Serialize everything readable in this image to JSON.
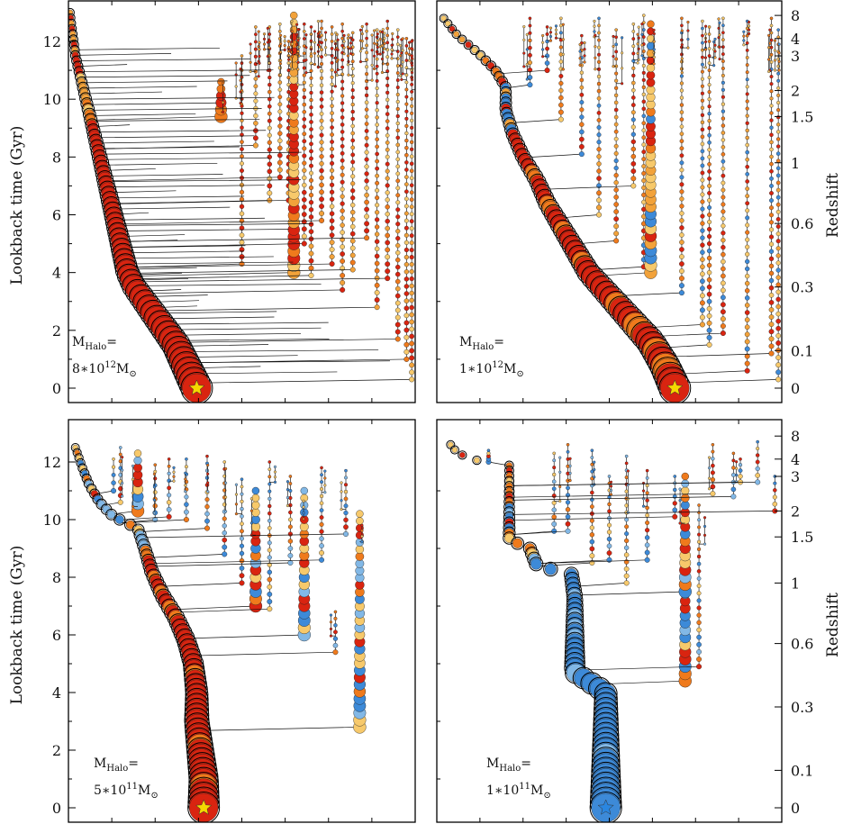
{
  "figure": {
    "left_axis_label": "Lookback time (Gyr)",
    "right_axis_label": "Redshift",
    "y_tick_labels": [
      "0",
      "2",
      "4",
      "6",
      "8",
      "10",
      "12"
    ],
    "z_tick_labels": [
      "0",
      "0.1",
      "0.3",
      "0.6",
      "1",
      "1.5",
      "2",
      "3",
      "4",
      "8"
    ]
  },
  "colors": {
    "red": "#d92410",
    "orange": "#ef7a1c",
    "amber": "#f2a23a",
    "yellow": "#f7c96b",
    "blue": "#3d8ad8",
    "lightblue": "#82b8e6",
    "star_yellow": "#f5d800",
    "star_blue": "#2a86e0"
  },
  "panels": [
    {
      "mass_label": {
        "prefix": "M",
        "sub": "Halo",
        "eq": "=",
        "coef": "8∗10",
        "exp": "12",
        "unit": "M",
        "unit_sub": "⊙"
      },
      "has_left_axis": true,
      "has_right_axis": false,
      "density": "high",
      "palette": [
        "red",
        "red",
        "orange",
        "amber",
        "yellow"
      ],
      "final_marker": {
        "time_gyr": 0,
        "color": "star_yellow"
      }
    },
    {
      "mass_label": {
        "prefix": "M",
        "sub": "Halo",
        "eq": "=",
        "coef": "1∗10",
        "exp": "12",
        "unit": "M",
        "unit_sub": "⊙"
      },
      "has_left_axis": false,
      "has_right_axis": true,
      "density": "medium",
      "palette": [
        "red",
        "orange",
        "amber",
        "yellow",
        "blue"
      ],
      "final_marker": {
        "time_gyr": 0,
        "color": "star_yellow"
      }
    },
    {
      "mass_label": {
        "prefix": "M",
        "sub": "Halo",
        "eq": "=",
        "coef": "5∗10",
        "exp": "11",
        "unit": "M",
        "unit_sub": "⊙"
      },
      "has_left_axis": true,
      "has_right_axis": false,
      "density": "low",
      "palette": [
        "red",
        "orange",
        "yellow",
        "lightblue",
        "blue"
      ],
      "final_marker": {
        "time_gyr": 0,
        "color": "star_yellow"
      }
    },
    {
      "mass_label": {
        "prefix": "M",
        "sub": "Halo",
        "eq": "=",
        "coef": "1∗10",
        "exp": "11",
        "unit": "M",
        "unit_sub": "⊙"
      },
      "has_left_axis": false,
      "has_right_axis": true,
      "density": "sparse",
      "palette": [
        "blue",
        "lightblue",
        "orange",
        "red",
        "yellow"
      ],
      "final_marker": {
        "time_gyr": 0,
        "color": "star_blue"
      }
    }
  ],
  "chart_data": [
    {
      "type": "merger-tree",
      "xlabel": "",
      "ylabel": "Lookback time (Gyr)",
      "y2label": "Redshift",
      "ylim": [
        0,
        13
      ],
      "y_ticks": [
        0,
        2,
        4,
        6,
        8,
        10,
        12
      ],
      "y2_ticks": [
        0,
        0.1,
        0.3,
        0.6,
        1,
        1.5,
        2,
        3,
        4,
        8
      ],
      "main_branch": [
        [
          0.37,
          0
        ],
        [
          0.35,
          0.5
        ],
        [
          0.33,
          1
        ],
        [
          0.31,
          1.5
        ],
        [
          0.28,
          2
        ],
        [
          0.25,
          2.5
        ],
        [
          0.22,
          3
        ],
        [
          0.19,
          3.5
        ],
        [
          0.17,
          4
        ],
        [
          0.16,
          4.5
        ],
        [
          0.15,
          5
        ],
        [
          0.14,
          5.5
        ],
        [
          0.13,
          6
        ],
        [
          0.12,
          6.5
        ],
        [
          0.11,
          7
        ],
        [
          0.1,
          7.5
        ],
        [
          0.09,
          8
        ],
        [
          0.08,
          8.5
        ],
        [
          0.07,
          9
        ],
        [
          0.06,
          9.5
        ],
        [
          0.05,
          10
        ],
        [
          0.04,
          10.5
        ],
        [
          0.03,
          11
        ],
        [
          0.02,
          11.5
        ],
        [
          0.015,
          12
        ],
        [
          0.01,
          12.5
        ],
        [
          0.005,
          13
        ]
      ],
      "main_branch_size": "large",
      "side_branches": [
        {
          "x": 0.44,
          "t_top": 10.6,
          "t_merge": 9.4,
          "bold": true
        },
        {
          "x": 0.5,
          "t_top": 11.5,
          "t_merge": 4.3,
          "bold": false
        },
        {
          "x": 0.54,
          "t_top": 12.5,
          "t_merge": 8.4,
          "bold": false
        },
        {
          "x": 0.58,
          "t_top": 12.5,
          "t_merge": 6.5,
          "bold": false
        },
        {
          "x": 0.61,
          "t_top": 12.6,
          "t_merge": 7.3,
          "bold": false
        },
        {
          "x": 0.635,
          "t_top": 12.0,
          "t_merge": 6.5,
          "bold": false
        },
        {
          "x": 0.65,
          "t_top": 12.9,
          "t_merge": 4.0,
          "bold": true
        },
        {
          "x": 0.68,
          "t_top": 12.6,
          "t_merge": 5.0,
          "bold": false
        },
        {
          "x": 0.7,
          "t_top": 12.5,
          "t_merge": 3.9,
          "bold": false
        },
        {
          "x": 0.73,
          "t_top": 12.7,
          "t_merge": 5.8,
          "bold": false
        },
        {
          "x": 0.76,
          "t_top": 12.5,
          "t_merge": 4.3,
          "bold": false
        },
        {
          "x": 0.79,
          "t_top": 12.6,
          "t_merge": 3.4,
          "bold": false
        },
        {
          "x": 0.82,
          "t_top": 12.3,
          "t_merge": 4.1,
          "bold": false
        },
        {
          "x": 0.86,
          "t_top": 12.6,
          "t_merge": 5.2,
          "bold": false
        },
        {
          "x": 0.89,
          "t_top": 12.4,
          "t_merge": 2.8,
          "bold": false
        },
        {
          "x": 0.92,
          "t_top": 12.7,
          "t_merge": 3.8,
          "bold": false
        },
        {
          "x": 0.95,
          "t_top": 12.4,
          "t_merge": 1.7,
          "bold": false
        },
        {
          "x": 0.975,
          "t_top": 12.1,
          "t_merge": 1.0,
          "bold": false
        },
        {
          "x": 0.99,
          "t_top": 12.0,
          "t_merge": 0.3,
          "bold": false
        }
      ]
    },
    {
      "type": "merger-tree",
      "xlabel": "",
      "ylabel": "Lookback time (Gyr)",
      "y2label": "Redshift",
      "ylim": [
        0,
        13
      ],
      "y_ticks": [
        0,
        2,
        4,
        6,
        8,
        10,
        12
      ],
      "y2_ticks": [
        0,
        0.1,
        0.3,
        0.6,
        1,
        1.5,
        2,
        3,
        4,
        8
      ],
      "main_branch": [
        [
          0.69,
          0
        ],
        [
          0.66,
          0.8
        ],
        [
          0.62,
          1.6
        ],
        [
          0.56,
          2.4
        ],
        [
          0.5,
          3.2
        ],
        [
          0.44,
          4
        ],
        [
          0.4,
          4.8
        ],
        [
          0.36,
          5.6
        ],
        [
          0.32,
          6.4
        ],
        [
          0.29,
          7.2
        ],
        [
          0.25,
          8
        ],
        [
          0.22,
          8.8
        ],
        [
          0.2,
          9.6
        ],
        [
          0.2,
          10.4
        ],
        [
          0.17,
          11
        ],
        [
          0.12,
          11.6
        ],
        [
          0.06,
          12.2
        ],
        [
          0.02,
          12.8
        ]
      ],
      "main_branch_size": "large",
      "side_branches": [
        {
          "x": 0.27,
          "t_top": 12.8,
          "t_merge": 10.5,
          "bold": false
        },
        {
          "x": 0.32,
          "t_top": 12.5,
          "t_merge": 11.0,
          "bold": false
        },
        {
          "x": 0.36,
          "t_top": 12.8,
          "t_merge": 9.3,
          "bold": false
        },
        {
          "x": 0.42,
          "t_top": 12.2,
          "t_merge": 8.1,
          "bold": false
        },
        {
          "x": 0.47,
          "t_top": 12.8,
          "t_merge": 6.0,
          "bold": false
        },
        {
          "x": 0.52,
          "t_top": 12.4,
          "t_merge": 5.1,
          "bold": false
        },
        {
          "x": 0.57,
          "t_top": 12.6,
          "t_merge": 7.0,
          "bold": false
        },
        {
          "x": 0.6,
          "t_top": 12.9,
          "t_merge": 4.2,
          "bold": false
        },
        {
          "x": 0.62,
          "t_top": 12.6,
          "t_merge": 4.0,
          "bold": true
        },
        {
          "x": 0.71,
          "t_top": 12.8,
          "t_merge": 3.3,
          "bold": false
        },
        {
          "x": 0.77,
          "t_top": 12.7,
          "t_merge": 2.2,
          "bold": false
        },
        {
          "x": 0.79,
          "t_top": 12.5,
          "t_merge": 1.5,
          "bold": false
        },
        {
          "x": 0.83,
          "t_top": 12.8,
          "t_merge": 1.9,
          "bold": false
        },
        {
          "x": 0.9,
          "t_top": 12.7,
          "t_merge": 0.6,
          "bold": false
        },
        {
          "x": 0.97,
          "t_top": 12.8,
          "t_merge": 1.2,
          "bold": false
        },
        {
          "x": 0.99,
          "t_top": 12.4,
          "t_merge": 0.3,
          "bold": false
        }
      ]
    },
    {
      "type": "merger-tree",
      "xlabel": "",
      "ylabel": "Lookback time (Gyr)",
      "y2label": "Redshift",
      "ylim": [
        0,
        13
      ],
      "y_ticks": [
        0,
        2,
        4,
        6,
        8,
        10,
        12
      ],
      "y2_ticks": [
        0,
        0.1,
        0.3,
        0.6,
        1,
        1.5,
        2,
        3,
        4,
        8
      ],
      "main_branch": [
        [
          0.39,
          0
        ],
        [
          0.39,
          1
        ],
        [
          0.38,
          2
        ],
        [
          0.37,
          3
        ],
        [
          0.37,
          4
        ],
        [
          0.36,
          5
        ],
        [
          0.34,
          5.8
        ],
        [
          0.31,
          6.6
        ],
        [
          0.27,
          7.4
        ],
        [
          0.24,
          8.2
        ],
        [
          0.22,
          9
        ],
        [
          0.2,
          9.7
        ],
        [
          0.13,
          10.1
        ],
        [
          0.09,
          10.6
        ],
        [
          0.06,
          11.2
        ],
        [
          0.04,
          11.8
        ],
        [
          0.02,
          12.5
        ]
      ],
      "main_branch_size": "large",
      "side_branches": [
        {
          "x": 0.13,
          "t_top": 12.1,
          "t_merge": 11.0,
          "bold": false
        },
        {
          "x": 0.15,
          "t_top": 12.5,
          "t_merge": 10.6,
          "bold": false
        },
        {
          "x": 0.2,
          "t_top": 12.3,
          "t_merge": 10.3,
          "bold": true
        },
        {
          "x": 0.25,
          "t_top": 11.9,
          "t_merge": 10.0,
          "bold": false
        },
        {
          "x": 0.29,
          "t_top": 12.1,
          "t_merge": 10.1,
          "bold": false
        },
        {
          "x": 0.34,
          "t_top": 12.1,
          "t_merge": 10.0,
          "bold": false
        },
        {
          "x": 0.4,
          "t_top": 12.2,
          "t_merge": 9.7,
          "bold": false
        },
        {
          "x": 0.45,
          "t_top": 12.0,
          "t_merge": 8.8,
          "bold": false
        },
        {
          "x": 0.5,
          "t_top": 11.4,
          "t_merge": 7.8,
          "bold": false
        },
        {
          "x": 0.54,
          "t_top": 11.0,
          "t_merge": 7.0,
          "bold": true
        },
        {
          "x": 0.58,
          "t_top": 12.0,
          "t_merge": 6.9,
          "bold": false
        },
        {
          "x": 0.64,
          "t_top": 11.5,
          "t_merge": 8.5,
          "bold": false
        },
        {
          "x": 0.68,
          "t_top": 11.0,
          "t_merge": 6.0,
          "bold": true
        },
        {
          "x": 0.73,
          "t_top": 11.8,
          "t_merge": 8.6,
          "bold": false
        },
        {
          "x": 0.77,
          "t_top": 6.8,
          "t_merge": 5.4,
          "bold": false
        },
        {
          "x": 0.8,
          "t_top": 11.7,
          "t_merge": 9.5,
          "bold": false
        },
        {
          "x": 0.84,
          "t_top": 10.2,
          "t_merge": 2.8,
          "bold": true
        }
      ]
    },
    {
      "type": "merger-tree",
      "xlabel": "",
      "ylabel": "Lookback time (Gyr)",
      "y2label": "Redshift",
      "ylim": [
        0,
        13
      ],
      "y_ticks": [
        0,
        2,
        4,
        6,
        8,
        10,
        12
      ],
      "y2_ticks": [
        0,
        0.1,
        0.3,
        0.6,
        1,
        1.5,
        2,
        3,
        4,
        8
      ],
      "main_branch": [
        [
          0.49,
          0
        ],
        [
          0.49,
          1
        ],
        [
          0.49,
          2
        ],
        [
          0.49,
          3
        ],
        [
          0.49,
          4
        ],
        [
          0.4,
          4.7
        ],
        [
          0.4,
          5.6
        ],
        [
          0.4,
          6.5
        ],
        [
          0.4,
          7.3
        ],
        [
          0.39,
          8.1
        ],
        [
          0.29,
          8.4
        ],
        [
          0.27,
          9.0
        ],
        [
          0.21,
          9.3
        ],
        [
          0.21,
          10.2
        ],
        [
          0.21,
          11.0
        ],
        [
          0.21,
          12.0
        ],
        [
          0.13,
          12.0
        ],
        [
          0.06,
          12.3
        ],
        [
          0.04,
          12.6
        ]
      ],
      "main_branch_size": "large",
      "side_branches": [
        {
          "x": 0.15,
          "t_top": 12.4,
          "t_merge": 12.0,
          "bold": false
        },
        {
          "x": 0.34,
          "t_top": 12.3,
          "t_merge": 9.6,
          "bold": false
        },
        {
          "x": 0.38,
          "t_top": 12.6,
          "t_merge": 9.6,
          "bold": false
        },
        {
          "x": 0.45,
          "t_top": 12.4,
          "t_merge": 8.5,
          "bold": false
        },
        {
          "x": 0.5,
          "t_top": 11.5,
          "t_merge": 8.6,
          "bold": false
        },
        {
          "x": 0.55,
          "t_top": 12.2,
          "t_merge": 7.8,
          "bold": false
        },
        {
          "x": 0.61,
          "t_top": 11.7,
          "t_merge": 8.6,
          "bold": false
        },
        {
          "x": 0.69,
          "t_top": 11.5,
          "t_merge": 10.1,
          "bold": false
        },
        {
          "x": 0.72,
          "t_top": 10.2,
          "t_merge": 4.4,
          "bold": true
        },
        {
          "x": 0.72,
          "t_top": 11.5,
          "t_merge": 7.5,
          "bold": true
        },
        {
          "x": 0.76,
          "t_top": 10.5,
          "t_merge": 4.9,
          "bold": false
        },
        {
          "x": 0.8,
          "t_top": 12.6,
          "t_merge": 10.9,
          "bold": false
        },
        {
          "x": 0.86,
          "t_top": 12.3,
          "t_merge": 10.8,
          "bold": false
        },
        {
          "x": 0.88,
          "t_top": 12.1,
          "t_merge": 11.3,
          "bold": false
        },
        {
          "x": 0.93,
          "t_top": 12.7,
          "t_merge": 11.3,
          "bold": false
        },
        {
          "x": 0.98,
          "t_top": 11.5,
          "t_merge": 10.3,
          "bold": false
        }
      ]
    }
  ]
}
